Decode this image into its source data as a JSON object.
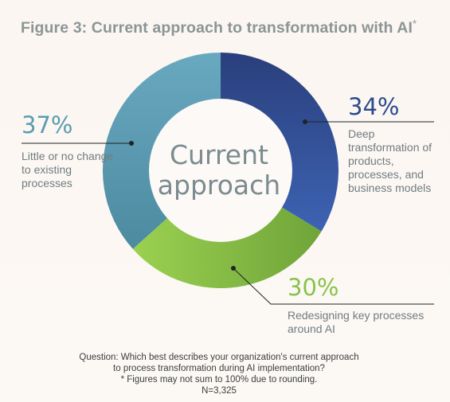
{
  "title": "Figure 3: Current approach to transformation with AI",
  "title_mark": "*",
  "center_label": "Current approach",
  "chart_data": {
    "type": "pie",
    "title": "Figure 3: Current approach to transformation with AI*",
    "donut": true,
    "slices": [
      {
        "label": "Deep transformation of products, processes, and business models",
        "value": 34,
        "display": "34%",
        "color": "#2c4a8c"
      },
      {
        "label": "Redesigning key processes around AI",
        "value": 30,
        "display": "30%",
        "color": "#88c34a"
      },
      {
        "label": "Little or no change to existing processes",
        "value": 37,
        "display": "37%",
        "color": "#5a9cb0"
      }
    ]
  },
  "footnote": {
    "question_line1": "Question: Which best describes your organization's current approach",
    "question_line2": "to process transformation during AI implementation?",
    "rounding": "* Figures may not sum to 100% due to rounding.",
    "sample": "N=3,325"
  }
}
